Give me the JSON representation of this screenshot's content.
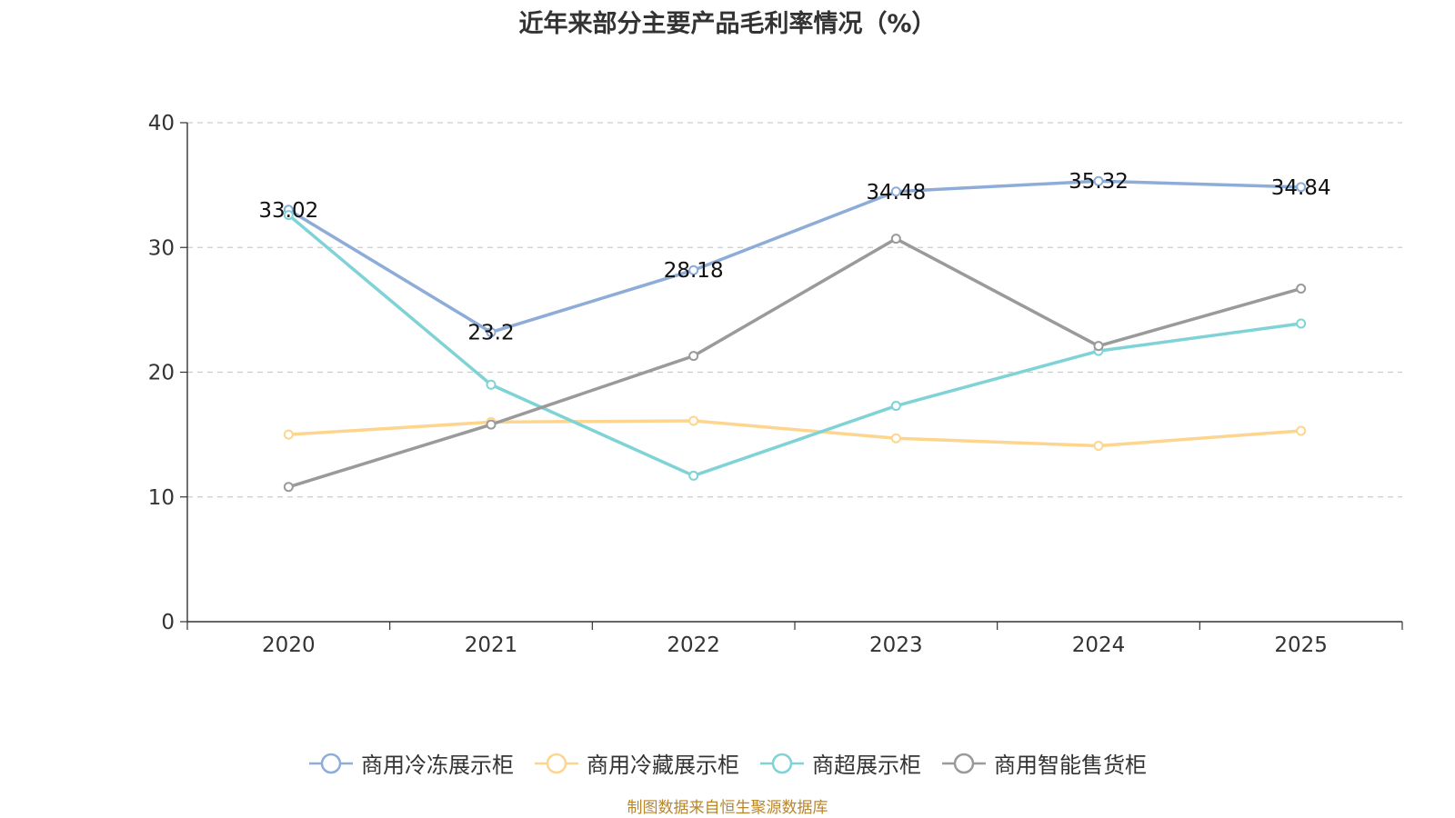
{
  "chart_data": {
    "type": "line",
    "title": "近年来部分主要产品毛利率情况（%）",
    "categories": [
      "2020",
      "2021",
      "2022",
      "2023",
      "2024",
      "2025"
    ],
    "ylim": [
      0,
      40
    ],
    "yticks": [
      0,
      10,
      20,
      30,
      40
    ],
    "ytick_labels": [
      "0",
      "10",
      "20",
      "30",
      "40"
    ],
    "grid": true,
    "legend_position": "bottom-center",
    "series": [
      {
        "name": "商用冷冻展示柜",
        "color": "#8eacd8",
        "values": [
          33.02,
          23.2,
          28.18,
          34.48,
          35.32,
          34.84
        ],
        "labels": [
          "33.02",
          "23.2",
          "28.18",
          "34.48",
          "35.32",
          "34.84"
        ],
        "show_labels": true
      },
      {
        "name": "商用冷藏展示柜",
        "color": "#fdd58e",
        "values": [
          15.0,
          16.0,
          16.1,
          14.7,
          14.1,
          15.3
        ],
        "show_labels": false
      },
      {
        "name": "商超展示柜",
        "color": "#7fd3d6",
        "values": [
          32.6,
          19.0,
          11.7,
          17.3,
          21.7,
          23.9
        ],
        "show_labels": false
      },
      {
        "name": "商用智能售货柜",
        "color": "#9a9a9a",
        "values": [
          10.8,
          15.8,
          21.3,
          30.7,
          22.1,
          26.7
        ],
        "show_labels": false
      }
    ]
  },
  "source_note": "制图数据来自恒生聚源数据库"
}
